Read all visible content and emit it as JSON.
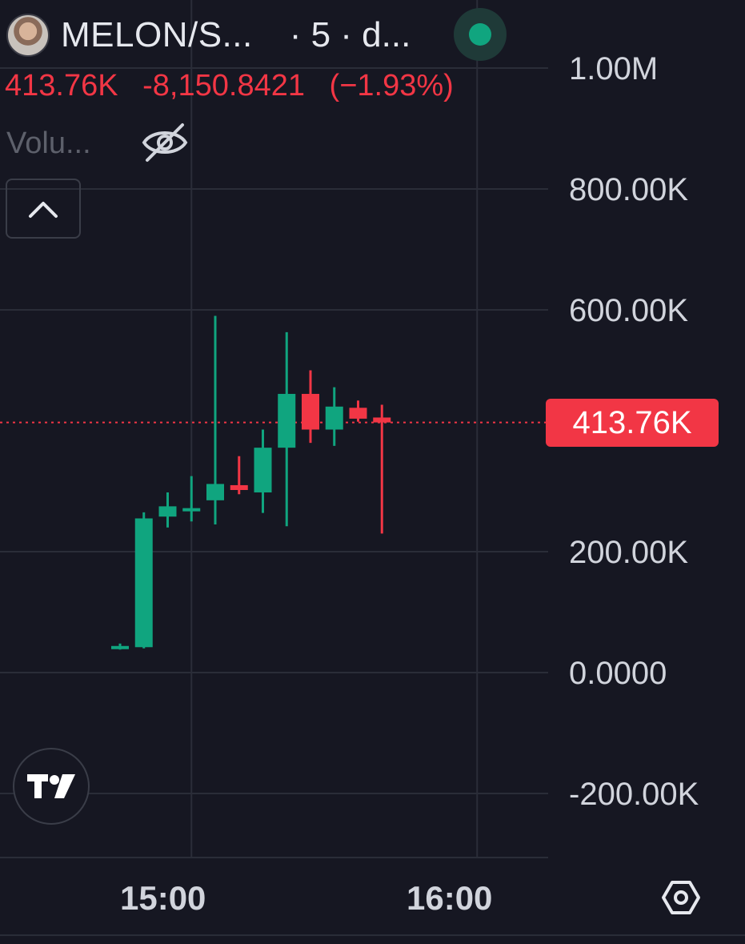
{
  "header": {
    "symbol": "MELON/S...",
    "interval": "· 5 · d...",
    "live_color": "#10a57f"
  },
  "ohlc": {
    "price": "413.76K",
    "change": "-8,150.8421",
    "change_pct": "(−1.93%)",
    "color": "#f23645"
  },
  "indicator": {
    "label": "Volu...",
    "icon": "eye-off-icon"
  },
  "controls": {
    "collapse_icon": "chevron-up-icon",
    "settings_icon": "hexagon-gear-icon",
    "logo": "tradingview-logo"
  },
  "chart_data": {
    "type": "candlestick",
    "y_ticks": [
      {
        "value": 1000000,
        "label": "1.00M"
      },
      {
        "value": 800000,
        "label": "800.00K"
      },
      {
        "value": 600000,
        "label": "600.00K"
      },
      {
        "value": 200000,
        "label": "200.00K"
      },
      {
        "value": 0,
        "label": "0.0000"
      },
      {
        "value": -200000,
        "label": "-200.00K"
      }
    ],
    "x_ticks": [
      {
        "time": "15:00",
        "label": "15:00"
      },
      {
        "time": "16:00",
        "label": "16:00"
      }
    ],
    "ylim": [
      -240000,
      1100000
    ],
    "grid": true,
    "last_price": {
      "value": 413760,
      "label": "413.76K",
      "color": "#f23645"
    },
    "up_color": "#10a57f",
    "down_color": "#f23645",
    "candles": [
      {
        "time": "14:45",
        "open": 40000,
        "high": 48000,
        "low": 38000,
        "close": 44000
      },
      {
        "time": "14:50",
        "open": 42000,
        "high": 265000,
        "low": 40000,
        "close": 255000
      },
      {
        "time": "14:55",
        "open": 258000,
        "high": 298000,
        "low": 240000,
        "close": 275000
      },
      {
        "time": "15:00",
        "open": 268000,
        "high": 325000,
        "low": 250000,
        "close": 272000
      },
      {
        "time": "15:05",
        "open": 285000,
        "high": 590000,
        "low": 245000,
        "close": 312000
      },
      {
        "time": "15:10",
        "open": 310000,
        "high": 358000,
        "low": 295000,
        "close": 302000
      },
      {
        "time": "15:15",
        "open": 298000,
        "high": 402000,
        "low": 264000,
        "close": 372000
      },
      {
        "time": "15:20",
        "open": 372000,
        "high": 563000,
        "low": 242000,
        "close": 461000
      },
      {
        "time": "15:25",
        "open": 461000,
        "high": 500000,
        "low": 380000,
        "close": 402000
      },
      {
        "time": "15:30",
        "open": 402000,
        "high": 472000,
        "low": 375000,
        "close": 440000
      },
      {
        "time": "15:35",
        "open": 438000,
        "high": 450000,
        "low": 415000,
        "close": 420000
      },
      {
        "time": "15:40",
        "open": 421910,
        "high": 443000,
        "low": 230000,
        "close": 413760
      }
    ]
  }
}
